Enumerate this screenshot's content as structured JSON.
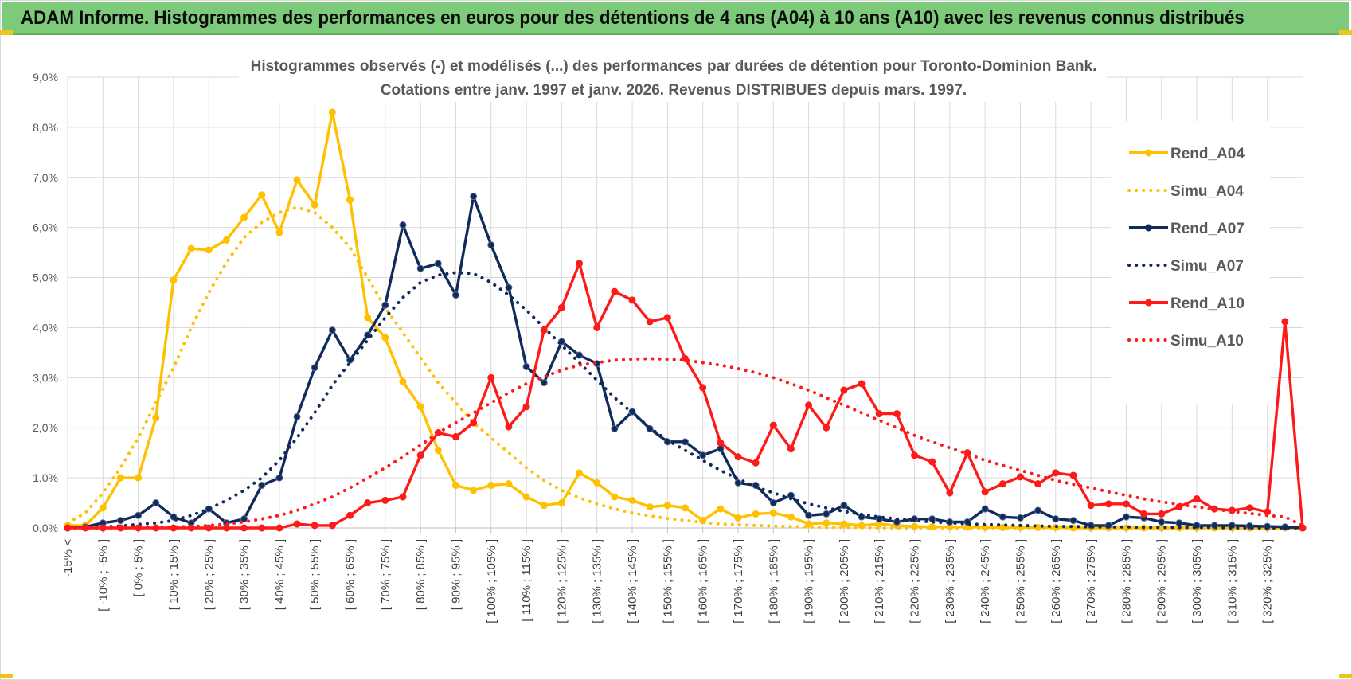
{
  "header": {
    "title": "ADAM Informe. Histogrammes des performances en euros pour des détentions de 4 ans (A04) à 10 ans (A10) avec les revenus connus distribués"
  },
  "colors": {
    "banner": "#7dcb7a",
    "A04": "#ffc000",
    "A07": "#112a5c",
    "A10": "#ff1a1a",
    "grid": "#d9d9d9",
    "text": "#595959"
  },
  "chart_data": {
    "type": "line",
    "title": [
      "Histogrammes observés (-) et modélisés (...) des performances par durées de détention pour Toronto-Dominion Bank.",
      "Cotations entre janv. 1997 et janv. 2026. Revenus DISTRIBUES depuis mars. 1997."
    ],
    "xlabel": "",
    "ylabel": "",
    "ylim": [
      0,
      9
    ],
    "yticks": [
      "0,0%",
      "1,0%",
      "2,0%",
      "3,0%",
      "4,0%",
      "5,0%",
      "6,0%",
      "7,0%",
      "8,0%",
      "9,0%"
    ],
    "grid": true,
    "legend_position": "right",
    "categories": [
      "-15% <",
      "[ -15% ; -10% ]",
      "[ -10% ; -5% ]",
      "[ -5% ; 0% ]",
      "[ 0% ; 5% ]",
      "[ 5% ; 10% ]",
      "[ 10% ; 15% ]",
      "[ 15% ; 20% ]",
      "[ 20% ; 25% ]",
      "[ 25% ; 30% ]",
      "[ 30% ; 35% ]",
      "[ 35% ; 40% ]",
      "[ 40% ; 45% ]",
      "[ 45% ; 50% ]",
      "[ 50% ; 55% ]",
      "[ 55% ; 60% ]",
      "[ 60% ; 65% ]",
      "[ 65% ; 70% ]",
      "[ 70% ; 75% ]",
      "[ 75% ; 80% ]",
      "[ 80% ; 85% ]",
      "[ 85% ; 90% ]",
      "[ 90% ; 95% ]",
      "[ 95% ; 100% ]",
      "[ 100% ; 105% ]",
      "[ 105% ; 110% ]",
      "[ 110% ; 115% ]",
      "[ 115% ; 120% ]",
      "[ 120% ; 125% ]",
      "[ 125% ; 130% ]",
      "[ 130% ; 135% ]",
      "[ 135% ; 140% ]",
      "[ 140% ; 145% ]",
      "[ 145% ; 150% ]",
      "[ 150% ; 155% ]",
      "[ 155% ; 160% ]",
      "[ 160% ; 165% ]",
      "[ 165% ; 170% ]",
      "[ 170% ; 175% ]",
      "[ 175% ; 180% ]",
      "[ 180% ; 185% ]",
      "[ 185% ; 190% ]",
      "[ 190% ; 195% ]",
      "[ 195% ; 200% ]",
      "[ 200% ; 205% ]",
      "[ 205% ; 210% ]",
      "[ 210% ; 215% ]",
      "[ 215% ; 220% ]",
      "[ 220% ; 225% ]",
      "[ 225% ; 230% ]",
      "[ 230% ; 235% ]",
      "[ 235% ; 240% ]",
      "[ 240% ; 245% ]",
      "[ 245% ; 250% ]",
      "[ 250% ; 255% ]",
      "[ 255% ; 260% ]",
      "[ 260% ; 265% ]",
      "[ 265% ; 270% ]",
      "[ 270% ; 275% ]",
      "[ 275% ; 280% ]",
      "[ 280% ; 285% ]",
      "[ 285% ; 290% ]",
      "[ 290% ; 295% ]",
      "[ 295% ; 300% ]",
      "[ 300% ; 305% ]",
      "[ 305% ; 310% ]",
      "[ 310% ; 315% ]",
      "[ 315% ; 320% ]",
      "[ 320% ; 325% ]",
      "[ 325% ; 330% ]",
      "> 330%"
    ],
    "tick_labels": [
      "-15% <",
      "[ -10% ; -5% ]",
      "[ 0% ; 5% ]",
      "[ 10% ; 15% ]",
      "[ 20% ; 25% ]",
      "[ 30% ; 35% ]",
      "[ 40% ; 45% ]",
      "[ 50% ; 55% ]",
      "[ 60% ; 65% ]",
      "[ 70% ; 75% ]",
      "[ 80% ; 85% ]",
      "[ 90% ; 95% ]",
      "[ 100% ; 105% ]",
      "[ 110% ; 115% ]",
      "[ 120% ; 125% ]",
      "[ 130% ; 135% ]",
      "[ 140% ; 145% ]",
      "[ 150% ; 155% ]",
      "[ 160% ; 165% ]",
      "[ 170% ; 175% ]",
      "[ 180% ; 185% ]",
      "[ 190% ; 195% ]",
      "[ 200% ; 205% ]",
      "[ 210% ; 215% ]",
      "[ 220% ; 225% ]",
      "[ 230% ; 235% ]",
      "[ 240% ; 245% ]",
      "[ 250% ; 255% ]",
      "[ 260% ; 265% ]",
      "[ 270% ; 275% ]",
      "[ 280% ; 285% ]",
      "[ 290% ; 295% ]",
      "[ 300% ; 305% ]",
      "[ 310% ; 315% ]",
      "[ 320% ; 325% ]"
    ],
    "series": [
      {
        "name": "Rend_A04",
        "style": "solid",
        "color": "#ffc000",
        "values": [
          0.05,
          0.05,
          0.4,
          1.0,
          1.0,
          2.2,
          4.95,
          5.58,
          5.55,
          5.75,
          6.2,
          6.65,
          5.9,
          6.95,
          6.45,
          8.3,
          6.55,
          4.2,
          3.8,
          2.92,
          2.42,
          1.55,
          0.85,
          0.75,
          0.85,
          0.88,
          0.62,
          0.45,
          0.5,
          1.1,
          0.9,
          0.62,
          0.55,
          0.42,
          0.45,
          0.4,
          0.15,
          0.38,
          0.2,
          0.28,
          0.3,
          0.22,
          0.08,
          0.1,
          0.08,
          0.05,
          0.08,
          0.05,
          0.03,
          0.02,
          0.02,
          0.02,
          0.01,
          0.01,
          0.01,
          0.01,
          0.01,
          0.0,
          0.0,
          0.0,
          0.0,
          0.0,
          0.0,
          0.0,
          0.0,
          0.0,
          0.0,
          0.0,
          0.0,
          0.0,
          0.0
        ]
      },
      {
        "name": "Simu_A04",
        "style": "dotted",
        "color": "#ffc000",
        "values": [
          0.1,
          0.3,
          0.7,
          1.2,
          1.8,
          2.5,
          3.2,
          4.0,
          4.7,
          5.3,
          5.8,
          6.1,
          6.3,
          6.4,
          6.3,
          6.0,
          5.6,
          5.0,
          4.4,
          3.9,
          3.4,
          2.9,
          2.5,
          2.1,
          1.8,
          1.5,
          1.2,
          0.95,
          0.75,
          0.6,
          0.48,
          0.38,
          0.3,
          0.24,
          0.19,
          0.15,
          0.11,
          0.08,
          0.06,
          0.05,
          0.04,
          0.03,
          0.02,
          0.01,
          0.01,
          0.01,
          0.0,
          0.0,
          0.0,
          0.0,
          0.0,
          0.0,
          0.0,
          0.0,
          0.0,
          0.0,
          0.0,
          0.0,
          0.0,
          0.0,
          0.0,
          0.0,
          0.0,
          0.0,
          0.0,
          0.0,
          0.0,
          0.0,
          0.0,
          0.0,
          0.0
        ]
      },
      {
        "name": "Rend_A07",
        "style": "solid",
        "color": "#112a5c",
        "values": [
          0.0,
          0.02,
          0.1,
          0.15,
          0.25,
          0.5,
          0.22,
          0.1,
          0.38,
          0.1,
          0.18,
          0.85,
          1.0,
          2.22,
          3.2,
          3.95,
          3.35,
          3.85,
          4.45,
          6.05,
          5.18,
          5.28,
          4.65,
          6.62,
          5.65,
          4.8,
          3.22,
          2.9,
          3.72,
          3.45,
          3.28,
          1.98,
          2.32,
          1.98,
          1.72,
          1.72,
          1.45,
          1.58,
          0.9,
          0.85,
          0.5,
          0.65,
          0.25,
          0.28,
          0.45,
          0.22,
          0.18,
          0.12,
          0.18,
          0.18,
          0.12,
          0.12,
          0.38,
          0.22,
          0.2,
          0.35,
          0.18,
          0.15,
          0.05,
          0.05,
          0.22,
          0.2,
          0.12,
          0.1,
          0.05,
          0.05,
          0.05,
          0.04,
          0.03,
          0.02,
          0.0
        ]
      },
      {
        "name": "Simu_A07",
        "style": "dotted",
        "color": "#112a5c",
        "values": [
          0.0,
          0.01,
          0.02,
          0.04,
          0.07,
          0.1,
          0.15,
          0.25,
          0.38,
          0.55,
          0.75,
          1.0,
          1.35,
          1.8,
          2.3,
          2.85,
          3.3,
          3.75,
          4.2,
          4.6,
          4.9,
          5.05,
          5.1,
          5.08,
          4.9,
          4.65,
          4.35,
          4.0,
          3.65,
          3.3,
          2.95,
          2.6,
          2.3,
          2.0,
          1.75,
          1.55,
          1.35,
          1.15,
          0.98,
          0.82,
          0.7,
          0.58,
          0.48,
          0.4,
          0.33,
          0.27,
          0.22,
          0.18,
          0.15,
          0.12,
          0.1,
          0.08,
          0.07,
          0.06,
          0.05,
          0.04,
          0.03,
          0.03,
          0.02,
          0.02,
          0.02,
          0.01,
          0.01,
          0.01,
          0.01,
          0.01,
          0.0,
          0.0,
          0.0,
          0.0,
          0.0
        ]
      },
      {
        "name": "Rend_A10",
        "style": "solid",
        "color": "#ff1a1a",
        "values": [
          0.0,
          0.0,
          0.0,
          0.0,
          0.0,
          0.0,
          0.0,
          0.0,
          0.0,
          0.0,
          0.0,
          0.0,
          0.0,
          0.08,
          0.05,
          0.05,
          0.25,
          0.5,
          0.55,
          0.62,
          1.45,
          1.9,
          1.82,
          2.1,
          3.0,
          2.02,
          2.42,
          3.95,
          4.4,
          5.28,
          4.0,
          4.72,
          4.55,
          4.12,
          4.2,
          3.38,
          2.8,
          1.7,
          1.42,
          1.3,
          2.05,
          1.58,
          2.45,
          2.0,
          2.75,
          2.88,
          2.28,
          2.28,
          1.45,
          1.32,
          0.7,
          1.5,
          0.72,
          0.88,
          1.02,
          0.88,
          1.1,
          1.05,
          0.45,
          0.48,
          0.48,
          0.28,
          0.28,
          0.42,
          0.58,
          0.38,
          0.35,
          0.4,
          0.32,
          4.12,
          0.0
        ]
      },
      {
        "name": "Simu_A10",
        "style": "dotted",
        "color": "#ff1a1a",
        "values": [
          0.0,
          0.0,
          0.0,
          0.0,
          0.01,
          0.01,
          0.02,
          0.03,
          0.05,
          0.08,
          0.12,
          0.18,
          0.25,
          0.35,
          0.48,
          0.62,
          0.8,
          1.0,
          1.2,
          1.42,
          1.65,
          1.9,
          2.1,
          2.3,
          2.5,
          2.7,
          2.88,
          3.02,
          3.15,
          3.25,
          3.3,
          3.35,
          3.37,
          3.38,
          3.37,
          3.35,
          3.3,
          3.25,
          3.18,
          3.1,
          3.0,
          2.88,
          2.75,
          2.6,
          2.45,
          2.3,
          2.15,
          2.0,
          1.85,
          1.72,
          1.6,
          1.48,
          1.35,
          1.25,
          1.15,
          1.05,
          0.95,
          0.87,
          0.8,
          0.72,
          0.65,
          0.58,
          0.52,
          0.47,
          0.42,
          0.37,
          0.33,
          0.29,
          0.25,
          0.22,
          0.05
        ]
      }
    ]
  }
}
